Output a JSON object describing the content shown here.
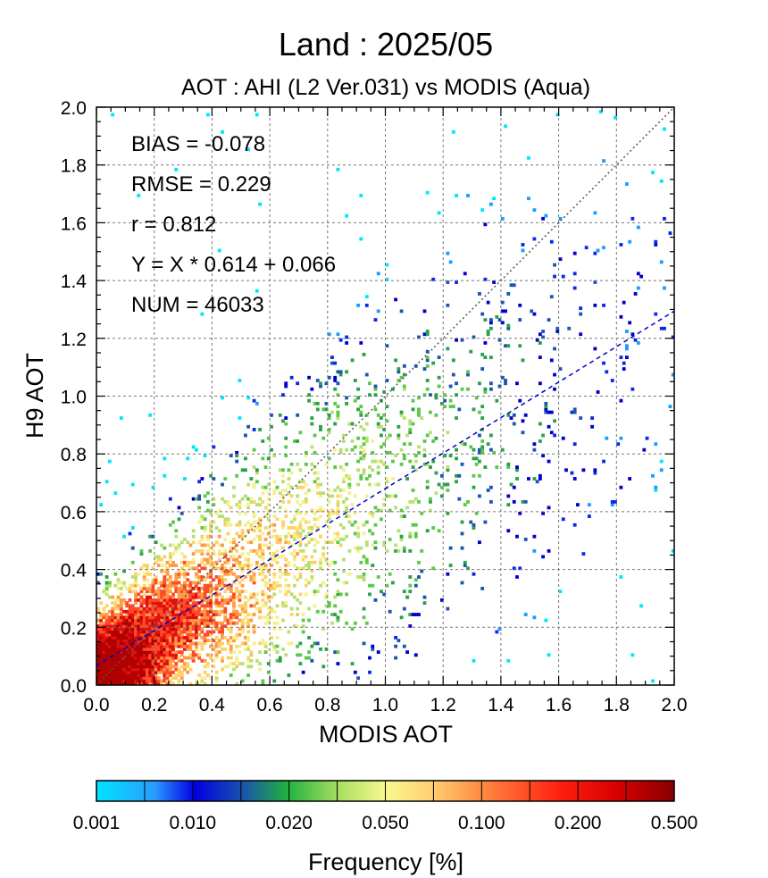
{
  "chart_data": {
    "type": "heatmap",
    "title": "Land  :  2025/05",
    "subtitle": "AOT : AHI (L2 Ver.031) vs MODIS (Aqua)",
    "xlabel": "MODIS AOT",
    "ylabel": "H9 AOT",
    "xlim": [
      0.0,
      2.0
    ],
    "ylim": [
      0.0,
      2.0
    ],
    "x_ticks": [
      "0.0",
      "0.2",
      "0.4",
      "0.6",
      "0.8",
      "1.0",
      "1.2",
      "1.4",
      "1.6",
      "1.8",
      "2.0"
    ],
    "y_ticks": [
      "0.0",
      "0.2",
      "0.4",
      "0.6",
      "0.8",
      "1.0",
      "1.2",
      "1.4",
      "1.6",
      "1.8",
      "2.0"
    ],
    "grid": true,
    "stats": {
      "bias": "BIAS = -0.078",
      "rmse": "RMSE = 0.229",
      "r": "r = 0.812",
      "fit": "Y = X * 0.614 + 0.066",
      "num": "NUM = 46033"
    },
    "reference_line": {
      "slope": 1.0,
      "intercept": 0.0,
      "style": "dotted",
      "color": "#555555"
    },
    "regression_line": {
      "slope": 0.614,
      "intercept": 0.066,
      "style": "dashed",
      "color": "#0000cc"
    },
    "colorbar": {
      "label": "Frequency [%]",
      "ticks": [
        "0.001",
        "0.010",
        "0.020",
        "0.050",
        "0.100",
        "0.200",
        "0.500"
      ],
      "colors": [
        "#00e5ff",
        "#1a8cff",
        "#0000dd",
        "#1060a0",
        "#20b040",
        "#66d040",
        "#f0f080",
        "#ffd060",
        "#ff9040",
        "#ff3020",
        "#dd0000",
        "#900000"
      ]
    },
    "density_model": {
      "core_center": [
        0.05,
        0.06
      ],
      "ridge_slope": 0.614,
      "ridge_intercept": 0.066,
      "peak_frequency_pct": 0.5,
      "min_frequency_pct": 0.001
    }
  }
}
